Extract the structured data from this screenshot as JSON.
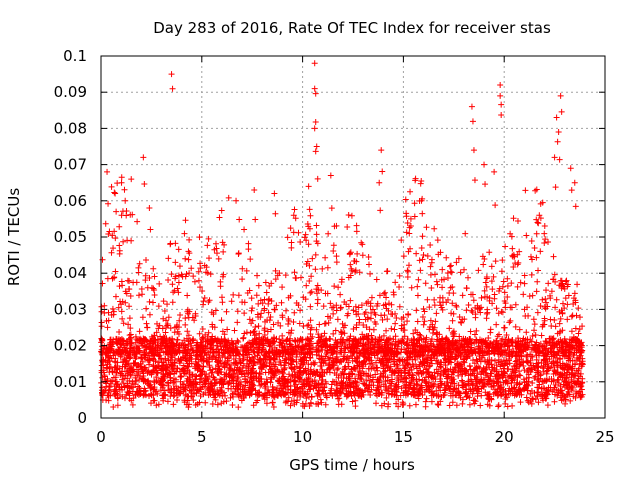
{
  "chart_data": {
    "type": "scatter",
    "title": "Day 283 of 2016, Rate Of TEC Index for receiver stas",
    "xlabel": "GPS time / hours",
    "ylabel": "ROTI / TECUs",
    "xlim": [
      0,
      25
    ],
    "ylim": [
      0,
      0.1
    ],
    "x_ticks": [
      "0",
      "5",
      "10",
      "15",
      "20",
      "25"
    ],
    "y_ticks": [
      "0",
      "0.01",
      "0.02",
      "0.03",
      "0.04",
      "0.05",
      "0.06",
      "0.07",
      "0.08",
      "0.09",
      "0.1"
    ],
    "grid": true,
    "marker": "+",
    "color": "#ff0000",
    "x_range_hours": [
      0,
      23.9
    ],
    "baseline_band": [
      0.006,
      0.022
    ],
    "series": [
      {
        "name": "ROTI",
        "notable_points": [
          {
            "x": 0.3,
            "y": 0.068
          },
          {
            "x": 0.7,
            "y": 0.062
          },
          {
            "x": 1.2,
            "y": 0.06
          },
          {
            "x": 1.5,
            "y": 0.066
          },
          {
            "x": 2.1,
            "y": 0.072
          },
          {
            "x": 2.4,
            "y": 0.058
          },
          {
            "x": 3.5,
            "y": 0.095
          },
          {
            "x": 7.6,
            "y": 0.063
          },
          {
            "x": 8.6,
            "y": 0.062
          },
          {
            "x": 10.3,
            "y": 0.064
          },
          {
            "x": 10.6,
            "y": 0.098
          },
          {
            "x": 10.6,
            "y": 0.091
          },
          {
            "x": 10.6,
            "y": 0.08
          },
          {
            "x": 10.7,
            "y": 0.075
          },
          {
            "x": 11.4,
            "y": 0.067
          },
          {
            "x": 13.9,
            "y": 0.074
          },
          {
            "x": 13.8,
            "y": 0.065
          },
          {
            "x": 15.9,
            "y": 0.06
          },
          {
            "x": 18.4,
            "y": 0.086
          },
          {
            "x": 18.5,
            "y": 0.074
          },
          {
            "x": 19.0,
            "y": 0.07
          },
          {
            "x": 19.5,
            "y": 0.068
          },
          {
            "x": 19.8,
            "y": 0.089
          },
          {
            "x": 19.8,
            "y": 0.092
          },
          {
            "x": 22.6,
            "y": 0.083
          },
          {
            "x": 22.8,
            "y": 0.089
          },
          {
            "x": 22.7,
            "y": 0.079
          },
          {
            "x": 22.5,
            "y": 0.072
          },
          {
            "x": 23.3,
            "y": 0.069
          },
          {
            "x": 23.5,
            "y": 0.065
          }
        ]
      }
    ]
  }
}
